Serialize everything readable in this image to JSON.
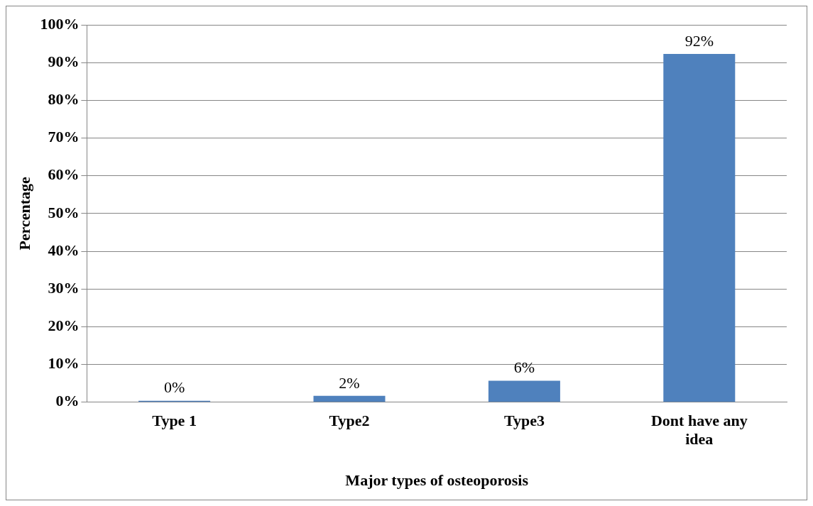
{
  "chart_data": {
    "type": "bar",
    "xlabel": "Major types of osteoporosis",
    "ylabel": "Percentage",
    "categories": [
      "Type 1",
      "Type2",
      "Type3",
      "Dont have any idea"
    ],
    "values": [
      0.4,
      1.7,
      5.7,
      92.3
    ],
    "value_labels": [
      "0%",
      "2%",
      "6%",
      "92%"
    ],
    "color": "#4f81bd",
    "ylim": [
      0,
      100
    ],
    "yticks": [
      {
        "value": 0,
        "label": "0%"
      },
      {
        "value": 10,
        "label": "10%"
      },
      {
        "value": 20,
        "label": "20%"
      },
      {
        "value": 30,
        "label": "30%"
      },
      {
        "value": 40,
        "label": "40%"
      },
      {
        "value": 50,
        "label": "50%"
      },
      {
        "value": 60,
        "label": "60%"
      },
      {
        "value": 70,
        "label": "70%"
      },
      {
        "value": 80,
        "label": "80%"
      },
      {
        "value": 90,
        "label": "90%"
      },
      {
        "value": 100,
        "label": "100%"
      }
    ],
    "grid": "y",
    "legend": false
  }
}
